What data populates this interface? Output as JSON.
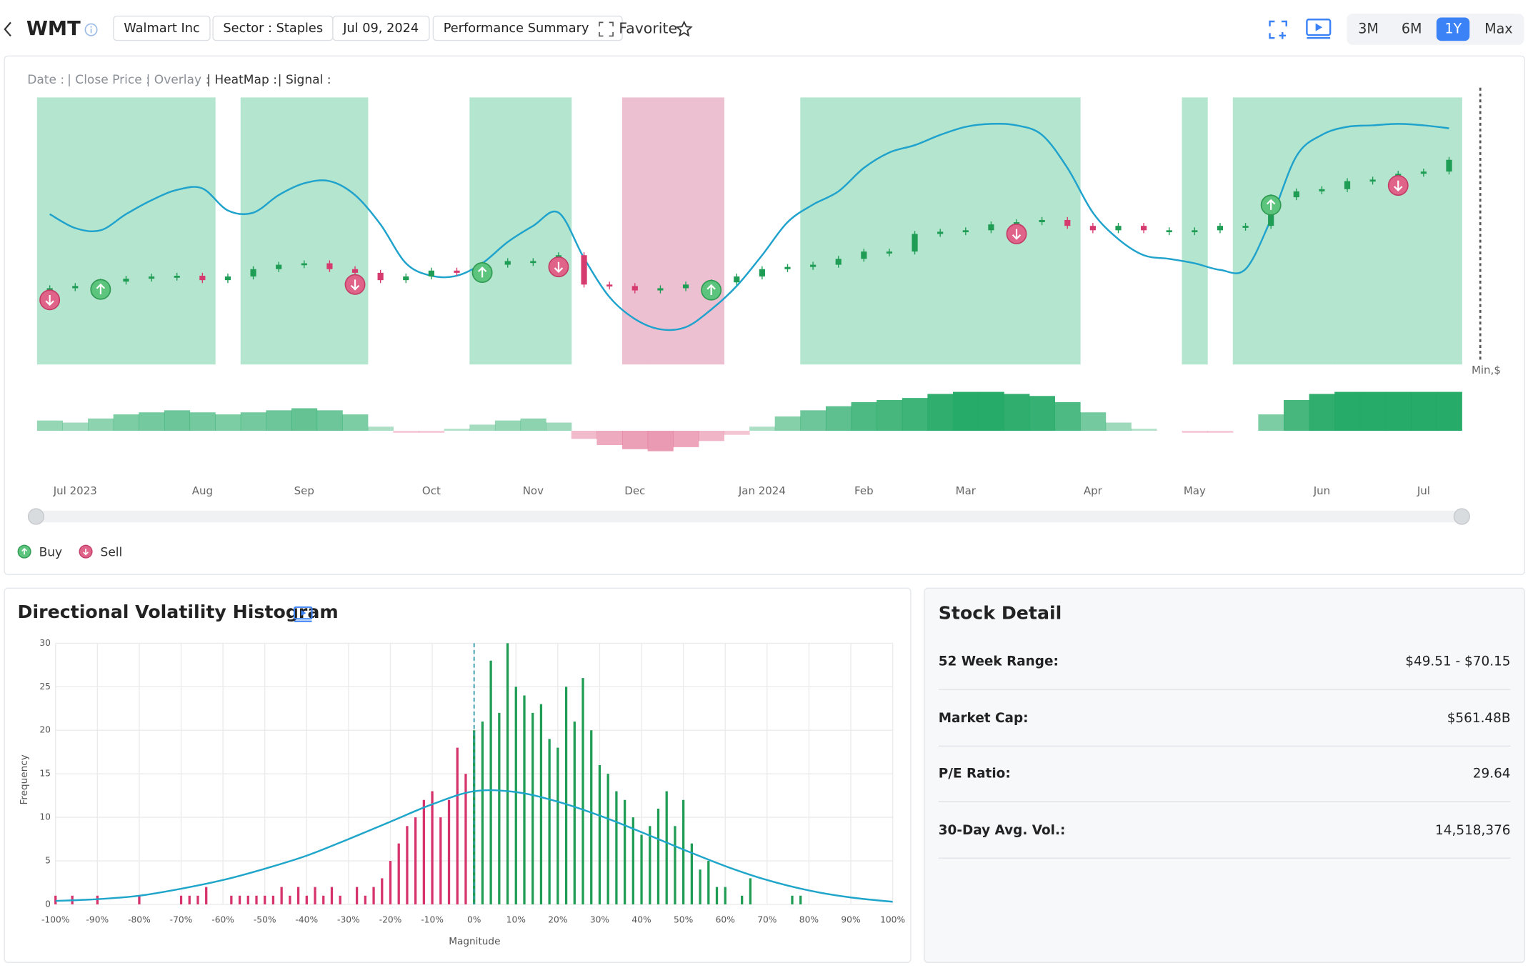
{
  "header": {
    "ticker": "WMT",
    "company": "Walmart Inc",
    "sector": "Sector : Staples",
    "date": "Jul 09, 2024",
    "summary": "Performance Summary",
    "favorite": "Favorite",
    "ranges": [
      "3M",
      "6M",
      "1Y",
      "Max"
    ],
    "active_range": 2
  },
  "chart_data": [
    {
      "type": "candlestick",
      "info_labels": [
        "Date :",
        "| Close Price :",
        "| Overlay :",
        "| HeatMap :",
        "| Signal :"
      ],
      "categories": [
        null,
        "Jul 2023",
        null,
        null,
        null,
        null,
        "Aug",
        null,
        null,
        null,
        "Sep",
        null,
        null,
        null,
        null,
        "Oct",
        null,
        null,
        null,
        "Nov",
        null,
        null,
        null,
        "Dec",
        null,
        null,
        null,
        null,
        "Jan 2024",
        null,
        null,
        null,
        "Feb",
        null,
        null,
        null,
        "Mar",
        null,
        null,
        null,
        null,
        "Apr",
        null,
        null,
        null,
        "May",
        null,
        null,
        null,
        null,
        "Jun",
        null,
        null,
        null,
        "Jul",
        null
      ],
      "close": [
        52.0,
        52.3,
        52.9,
        53.3,
        53.6,
        53.7,
        53.1,
        53.6,
        54.6,
        55.2,
        55.4,
        54.6,
        54.1,
        53.1,
        53.6,
        54.4,
        54.1,
        55.2,
        55.7,
        55.7,
        56.5,
        52.5,
        52.3,
        51.7,
        52.0,
        52.5,
        52.8,
        53.6,
        54.6,
        54.9,
        55.2,
        56.0,
        57.0,
        57.0,
        59.4,
        59.7,
        59.9,
        60.7,
        61.0,
        61.3,
        60.5,
        59.9,
        60.5,
        59.9,
        59.9,
        59.9,
        60.5,
        60.5,
        64.4,
        65.2,
        65.5,
        66.6,
        66.8,
        67.6,
        67.9,
        69.5
      ],
      "overlay": [
        62.1,
        60.2,
        59.9,
        62.1,
        64.0,
        65.4,
        65.6,
        62.6,
        62.3,
        64.7,
        66.3,
        66.6,
        64.7,
        60.7,
        55.4,
        53.7,
        53.7,
        55.4,
        58.3,
        60.5,
        62.3,
        56.1,
        50.8,
        47.8,
        46.4,
        46.7,
        49.1,
        52.3,
        56.5,
        61.0,
        63.4,
        65.2,
        68.4,
        70.5,
        71.5,
        72.9,
        74.0,
        74.4,
        74.2,
        72.9,
        68.4,
        62.3,
        58.7,
        56.5,
        56.0,
        55.4,
        54.5,
        54.6,
        61.4,
        70.0,
        72.9,
        74.0,
        74.2,
        74.4,
        74.2,
        73.8
      ],
      "regime": [
        1,
        1,
        1,
        1,
        1,
        1,
        1,
        0,
        1,
        1,
        1,
        1,
        1,
        0,
        0,
        0,
        0,
        1,
        1,
        1,
        1,
        0,
        0,
        -1,
        -1,
        -1,
        -1,
        0,
        0,
        0,
        1,
        1,
        1,
        1,
        1,
        1,
        1,
        1,
        1,
        1,
        1,
        0,
        0,
        0,
        0,
        1,
        0,
        1,
        1,
        1,
        1,
        1,
        1,
        1,
        1,
        1
      ],
      "heat": [
        0.25,
        0.2,
        0.3,
        0.4,
        0.45,
        0.5,
        0.45,
        0.4,
        0.45,
        0.5,
        0.55,
        0.5,
        0.4,
        0.1,
        -0.05,
        -0.05,
        0.05,
        0.15,
        0.25,
        0.3,
        0.2,
        -0.2,
        -0.35,
        -0.45,
        -0.5,
        -0.4,
        -0.25,
        -0.1,
        0.1,
        0.35,
        0.5,
        0.6,
        0.7,
        0.75,
        0.8,
        0.9,
        0.95,
        0.95,
        0.9,
        0.85,
        0.7,
        0.45,
        0.2,
        0.05,
        0,
        -0.05,
        -0.05,
        0,
        0.4,
        0.75,
        0.9,
        0.95,
        0.95,
        0.95,
        0.95,
        0.95
      ],
      "buy": [
        2,
        17,
        26,
        48
      ],
      "sell": [
        0,
        12,
        20,
        38,
        53
      ],
      "legend": [
        "Buy",
        "Sell"
      ],
      "y_label": "Min,$",
      "up_color": "#1f9d55",
      "down_color": "#d63b6f",
      "overlay_color": "#1fa2cc",
      "bull_color": "#b4e5cf",
      "bear_color": "#ecc0d0",
      "buy_color": "#5cc47c",
      "sell_color": "#e0648a"
    },
    {
      "type": "histogram",
      "title": "Directional Volatility Histogram",
      "xlabel": "Magnitude",
      "ylabel": "Frequency",
      "x": [
        -100,
        -98,
        -96,
        -94,
        -92,
        -90,
        -88,
        -86,
        -84,
        -82,
        -80,
        -78,
        -76,
        -74,
        -72,
        -70,
        -68,
        -66,
        -64,
        -62,
        -60,
        -58,
        -56,
        -54,
        -52,
        -50,
        -48,
        -46,
        -44,
        -42,
        -40,
        -38,
        -36,
        -34,
        -32,
        -30,
        -28,
        -26,
        -24,
        -22,
        -20,
        -18,
        -16,
        -14,
        -12,
        -10,
        -8,
        -6,
        -4,
        -2,
        0,
        2,
        4,
        6,
        8,
        10,
        12,
        14,
        16,
        18,
        20,
        22,
        24,
        26,
        28,
        30,
        32,
        34,
        36,
        38,
        40,
        42,
        44,
        46,
        48,
        50,
        52,
        54,
        56,
        58,
        60,
        62,
        64,
        66,
        68,
        70,
        72,
        74,
        76,
        78
      ],
      "values": [
        1,
        0,
        1,
        0,
        0,
        1,
        0,
        0,
        0,
        0,
        1,
        0,
        0,
        0,
        0,
        1,
        1,
        1,
        2,
        0,
        0,
        1,
        1,
        1,
        1,
        1,
        1,
        2,
        1,
        2,
        1,
        2,
        1,
        2,
        1,
        0,
        2,
        1,
        2,
        3,
        5,
        7,
        9,
        10,
        12,
        13,
        10,
        12,
        18,
        15,
        20,
        21,
        28,
        22,
        30,
        25,
        24,
        22,
        23,
        19,
        18,
        25,
        21,
        26,
        20,
        16,
        15,
        13,
        12,
        10,
        8,
        9,
        11,
        13,
        9,
        12,
        7,
        4,
        5,
        2,
        2,
        0,
        1,
        3,
        0,
        0,
        0,
        0,
        1,
        1
      ],
      "neg_color": "#d6336c",
      "pos_color": "#1f9d55",
      "curve": {
        "x": [
          -100,
          -90,
          -80,
          -70,
          -60,
          -50,
          -40,
          -30,
          -20,
          -10,
          0,
          10,
          20,
          30,
          40,
          50,
          60,
          70,
          80,
          90,
          100
        ],
        "values": [
          0.4,
          0.6,
          1.0,
          1.8,
          2.8,
          4.1,
          5.6,
          7.5,
          9.5,
          11.5,
          13.0,
          12.9,
          11.8,
          10.2,
          8.3,
          6.3,
          4.4,
          2.8,
          1.6,
          0.8,
          0.3
        ],
        "color": "#1ea5c9"
      },
      "reference_x": 0,
      "xlim": [
        -100,
        100
      ],
      "ylim": [
        0,
        30
      ],
      "xticks": [
        {
          "value": -100,
          "label": "-100%"
        },
        {
          "value": -90,
          "label": "-90%"
        },
        {
          "value": -80,
          "label": "-80%"
        },
        {
          "value": -70,
          "label": "-70%"
        },
        {
          "value": -60,
          "label": "-60%"
        },
        {
          "value": -50,
          "label": "-50%"
        },
        {
          "value": -40,
          "label": "-40%"
        },
        {
          "value": -30,
          "label": "-30%"
        },
        {
          "value": -20,
          "label": "-20%"
        },
        {
          "value": -10,
          "label": "-10%"
        },
        {
          "value": 0,
          "label": "0%"
        },
        {
          "value": 10,
          "label": "10%"
        },
        {
          "value": 20,
          "label": "20%"
        },
        {
          "value": 30,
          "label": "30%"
        },
        {
          "value": 40,
          "label": "40%"
        },
        {
          "value": 50,
          "label": "50%"
        },
        {
          "value": 60,
          "label": "60%"
        },
        {
          "value": 70,
          "label": "70%"
        },
        {
          "value": 80,
          "label": "80%"
        },
        {
          "value": 90,
          "label": "90%"
        },
        {
          "value": 100,
          "label": "100%"
        }
      ],
      "yticks": [
        0,
        5,
        10,
        15,
        20,
        25,
        30
      ],
      "grid": true
    }
  ],
  "stock_detail": {
    "title": "Stock Detail",
    "rows": [
      [
        "52 Week Range:",
        "$49.51 - $70.15"
      ],
      [
        "Market Cap:",
        "$561.48B"
      ],
      [
        "P/E Ratio:",
        "29.64"
      ],
      [
        "30-Day Avg. Vol.:",
        "14,518,376"
      ]
    ]
  }
}
